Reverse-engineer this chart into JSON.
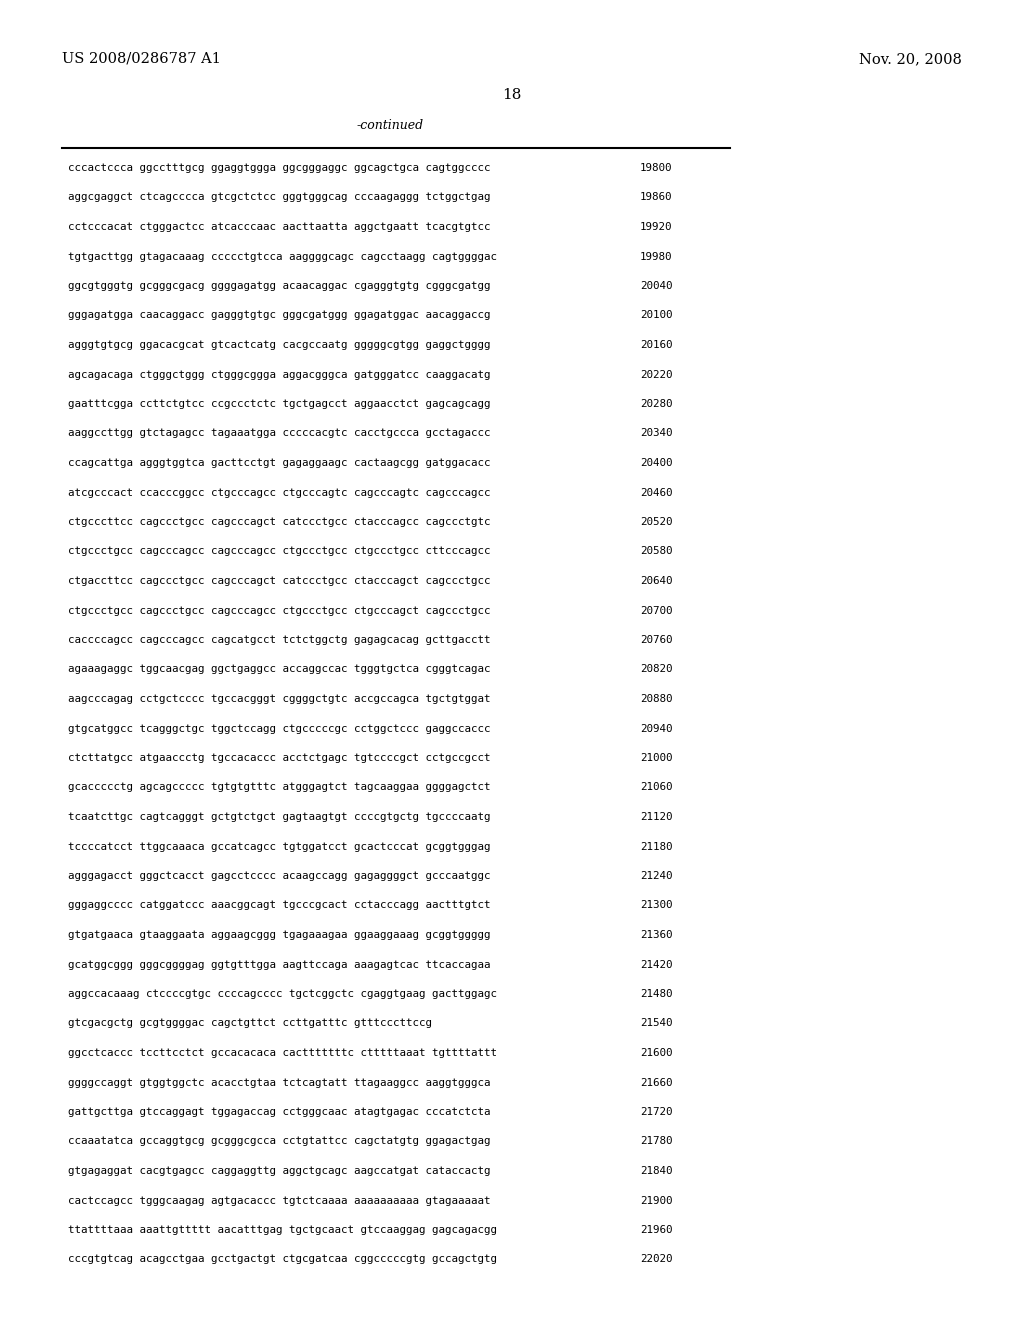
{
  "header_left": "US 2008/0286787 A1",
  "header_right": "Nov. 20, 2008",
  "page_number": "18",
  "continued_label": "-continued",
  "background_color": "#ffffff",
  "text_color": "#000000",
  "sequence_lines": [
    [
      "cccactccca ggcctttgcg ggaggtggga ggcgggaggc ggcagctgca cagtggcccc",
      "19800"
    ],
    [
      "aggcgaggct ctcagcccca gtcgctctcc gggtgggcag cccaagaggg tctggctgag",
      "19860"
    ],
    [
      "cctcccacat ctgggactcc atcacccaac aacttaatta aggctgaatt tcacgtgtcc",
      "19920"
    ],
    [
      "tgtgacttgg gtagacaaag ccccctgtcca aaggggcagc cagcctaagg cagtggggac",
      "19980"
    ],
    [
      "ggcgtgggtg gcgggcgacg ggggagatgg acaacaggac cgagggtgtg cgggcgatgg",
      "20040"
    ],
    [
      "gggagatgga caacaggacc gagggtgtgc gggcgatggg ggagatggac aacaggaccg",
      "20100"
    ],
    [
      "agggtgtgcg ggacacgcat gtcactcatg cacgccaatg gggggcgtgg gaggctgggg",
      "20160"
    ],
    [
      "agcagacaga ctgggctggg ctgggcggga aggacgggca gatgggatcc caaggacatg",
      "20220"
    ],
    [
      "gaatttcgga ccttctgtcc ccgccctctc tgctgagcct aggaacctct gagcagcagg",
      "20280"
    ],
    [
      "aaggccttgg gtctagagcc tagaaatgga cccccacgtc cacctgccca gcctagaccc",
      "20340"
    ],
    [
      "ccagcattga agggtggtca gacttcctgt gagaggaagc cactaagcgg gatggacacc",
      "20400"
    ],
    [
      "atcgcccact ccacccggcc ctgcccagcc ctgcccagtc cagcccagtc cagcccagcc",
      "20460"
    ],
    [
      "ctgcccttcc cagccctgcc cagcccagct catccctgcc ctacccagcc cagccctgtc",
      "20520"
    ],
    [
      "ctgccctgcc cagcccagcc cagcccagcc ctgccctgcc ctgccctgcc cttcccagcc",
      "20580"
    ],
    [
      "ctgaccttcc cagccctgcc cagcccagct catccctgcc ctacccagct cagccctgcc",
      "20640"
    ],
    [
      "ctgccctgcc cagccctgcc cagcccagcc ctgccctgcc ctgcccagct cagccctgcc",
      "20700"
    ],
    [
      "caccccagcc cagcccagcc cagcatgcct tctctggctg gagagcacag gcttgacctt",
      "20760"
    ],
    [
      "agaaagaggc tggcaacgag ggctgaggcc accaggccac tgggtgctca cgggtcagac",
      "20820"
    ],
    [
      "aagcccagag cctgctcccc tgccacgggt cggggctgtc accgccagca tgctgtggat",
      "20880"
    ],
    [
      "gtgcatggcc tcagggctgc tggctccagg ctgcccccgc cctggctccc gaggccaccc",
      "20940"
    ],
    [
      "ctcttatgcc atgaaccctg tgccacaccc acctctgagc tgtccccgct cctgccgcct",
      "21000"
    ],
    [
      "gcaccccctg agcagccccc tgtgtgtttc atgggagtct tagcaaggaa ggggagctct",
      "21060"
    ],
    [
      "tcaatcttgc cagtcagggt gctgtctgct gagtaagtgt ccccgtgctg tgccccaatg",
      "21120"
    ],
    [
      "tccccatcct ttggcaaaca gccatcagcc tgtggatcct gcactcccat gcggtgggag",
      "21180"
    ],
    [
      "agggagacct gggctcacct gagcctcccc acaagccagg gagaggggct gcccaatggc",
      "21240"
    ],
    [
      "gggaggcccc catggatccc aaacggcagt tgcccgcact cctacccagg aactttgtct",
      "21300"
    ],
    [
      "gtgatgaaca gtaaggaata aggaagcggg tgagaaagaa ggaaggaaag gcggtggggg",
      "21360"
    ],
    [
      "gcatggcggg gggcggggag ggtgtttgga aagttccaga aaagagtcac ttcaccagaa",
      "21420"
    ],
    [
      "aggccacaaag ctccccgtgc ccccagcccc tgctcggctc cgaggtgaag gacttggagc",
      "21480"
    ],
    [
      "gtcgacgctg gcgtggggac cagctgttct ccttgatttc gtttcccttccg",
      "21540"
    ],
    [
      "ggcctcaccc tccttcctct gccacacaca cactttttttc ctttttaaat tgttttattt",
      "21600"
    ],
    [
      "ggggccaggt gtggtggctc acacctgtaa tctcagtatt ttagaaggcc aaggtgggca",
      "21660"
    ],
    [
      "gattgcttga gtccaggagt tggagaccag cctgggcaac atagtgagac cccatctcta",
      "21720"
    ],
    [
      "ccaaatatca gccaggtgcg gcgggcgcca cctgtattcc cagctatgtg ggagactgag",
      "21780"
    ],
    [
      "gtgagaggat cacgtgagcc caggaggttg aggctgcagc aagccatgat cataccactg",
      "21840"
    ],
    [
      "cactccagcc tgggcaagag agtgacaccc tgtctcaaaa aaaaaaaaaa gtagaaaaat",
      "21900"
    ],
    [
      "ttattttaaa aaattgttttt aacatttgag tgctgcaact gtccaaggag gagcagacgg",
      "21960"
    ],
    [
      "cccgtgtcag acagcctgaa gcctgactgt ctgcgatcaa cggcccccgtg gccagctgtg",
      "22020"
    ]
  ]
}
